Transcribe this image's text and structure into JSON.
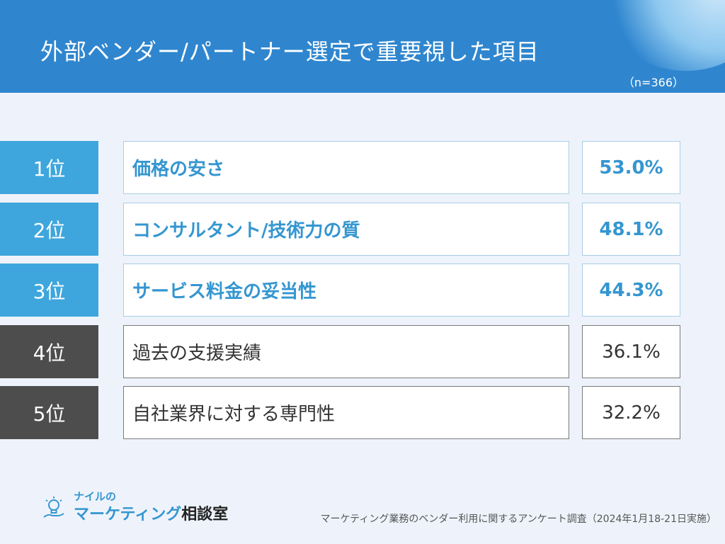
{
  "header": {
    "title": "外部ベンダー/パートナー選定で重要視した項目",
    "sample_size": "（n=366）"
  },
  "chart_data": {
    "type": "table",
    "title": "外部ベンダー/パートナー選定で重要視した項目",
    "rows": [
      {
        "rank": "1位",
        "label": "価格の安さ",
        "value": 53.0,
        "value_label": "53.0%"
      },
      {
        "rank": "2位",
        "label": "コンサルタント/技術力の質",
        "value": 48.1,
        "value_label": "48.1%"
      },
      {
        "rank": "3位",
        "label": "サービス料金の妥当性",
        "value": 44.3,
        "value_label": "44.3%"
      },
      {
        "rank": "4位",
        "label": "過去の支援実績",
        "value": 36.1,
        "value_label": "36.1%"
      },
      {
        "rank": "5位",
        "label": "自社業界に対する専門性",
        "value": 32.2,
        "value_label": "32.2%"
      }
    ],
    "colors": {
      "top_rank": "#3ea6dc",
      "top_text": "#3496d0",
      "low_rank": "#4d4d4d"
    }
  },
  "footer": {
    "logo_small": "ナイルの",
    "logo_main_blue": "マーケティング",
    "logo_main_dark": "相談室",
    "logo_icon": "lightbulb-icon",
    "source": "マーケティング業務のベンダー利用に関するアンケート調査（2024年1月18-21日実施）"
  }
}
